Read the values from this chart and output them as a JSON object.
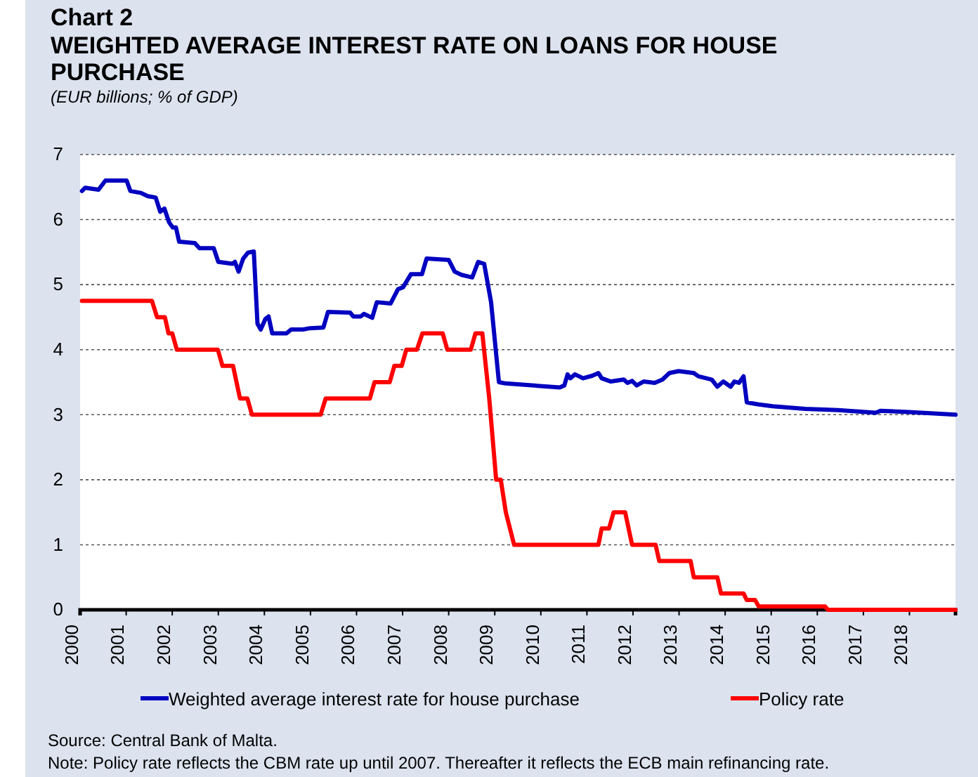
{
  "chart_data": {
    "type": "line",
    "title": "Chart 2",
    "subtitle": "WEIGHTED AVERAGE INTEREST RATE ON LOANS FOR HOUSE PURCHASE",
    "ylabel": "(EUR billions; % of GDP)",
    "annotations": [
      "Source: Central Bank of Malta.",
      "Note: Policy rate reflects the CBM rate up until 2007. Thereafter it reflects the ECB main refinancing rate."
    ],
    "xlim": [
      2000,
      2019
    ],
    "xticks": [
      2000,
      2001,
      2002,
      2003,
      2004,
      2005,
      2006,
      2007,
      2008,
      2009,
      2010,
      2011,
      2012,
      2013,
      2014,
      2015,
      2016,
      2017,
      2018
    ],
    "ylim": [
      0,
      7
    ],
    "yticks": [
      0,
      1,
      2,
      3,
      4,
      5,
      6,
      7
    ],
    "grid": "y",
    "legend": "bottom",
    "line_style": "solid",
    "series": [
      {
        "name": "Weighted average interest rate for house purchase",
        "color": "#0000c0",
        "x": [
          2000.04,
          2000.11,
          2000.4,
          2000.55,
          2001.01,
          2001.09,
          2001.32,
          2001.47,
          2001.64,
          2001.74,
          2001.83,
          2001.93,
          2002.01,
          2002.08,
          2002.15,
          2002.49,
          2002.59,
          2002.9,
          2003.0,
          2003.31,
          2003.36,
          2003.44,
          2003.54,
          2003.64,
          2003.77,
          2003.85,
          2003.92,
          2004.02,
          2004.09,
          2004.17,
          2004.48,
          2004.58,
          2004.84,
          2004.99,
          2005.28,
          2005.38,
          2005.86,
          2005.93,
          2006.09,
          2006.16,
          2006.34,
          2006.44,
          2006.74,
          2006.9,
          2007.01,
          2007.18,
          2007.42,
          2007.52,
          2008.0,
          2008.13,
          2008.28,
          2008.51,
          2008.64,
          2008.77,
          2008.92,
          2009.09,
          2009.24,
          2010.41,
          2010.51,
          2010.58,
          2010.64,
          2010.74,
          2010.92,
          2011.12,
          2011.25,
          2011.32,
          2011.52,
          2011.8,
          2011.88,
          2011.98,
          2012.08,
          2012.23,
          2012.47,
          2012.64,
          2012.79,
          2012.99,
          2013.32,
          2013.42,
          2013.71,
          2013.83,
          2013.96,
          2014.12,
          2014.2,
          2014.3,
          2014.4,
          2014.47,
          2014.71,
          2015.03,
          2015.74,
          2016.45,
          2017.27,
          2017.37,
          2017.98,
          2018.53,
          2019.0
        ],
        "values": [
          6.44,
          6.49,
          6.46,
          6.6,
          6.6,
          6.44,
          6.41,
          6.36,
          6.34,
          6.12,
          6.17,
          5.96,
          5.88,
          5.88,
          5.66,
          5.64,
          5.56,
          5.56,
          5.35,
          5.32,
          5.35,
          5.2,
          5.4,
          5.49,
          5.51,
          4.4,
          4.31,
          4.47,
          4.51,
          4.25,
          4.25,
          4.31,
          4.31,
          4.33,
          4.34,
          4.58,
          4.57,
          4.51,
          4.51,
          4.55,
          4.49,
          4.73,
          4.71,
          4.93,
          4.96,
          5.16,
          5.16,
          5.4,
          5.38,
          5.2,
          5.15,
          5.11,
          5.35,
          5.32,
          4.73,
          3.5,
          3.48,
          3.42,
          3.45,
          3.62,
          3.56,
          3.62,
          3.56,
          3.6,
          3.64,
          3.56,
          3.51,
          3.54,
          3.49,
          3.52,
          3.45,
          3.51,
          3.49,
          3.54,
          3.64,
          3.67,
          3.64,
          3.59,
          3.54,
          3.43,
          3.51,
          3.43,
          3.51,
          3.49,
          3.59,
          3.19,
          3.16,
          3.13,
          3.09,
          3.07,
          3.03,
          3.06,
          3.04,
          3.02,
          3.0
        ]
      },
      {
        "name": "Policy rate",
        "color": "#ff0000",
        "x": [
          2000.04,
          2001.56,
          2001.67,
          2001.84,
          2001.92,
          2002.0,
          2002.1,
          2002.99,
          2003.09,
          2003.32,
          2003.47,
          2003.63,
          2003.73,
          2005.22,
          2005.33,
          2006.29,
          2006.39,
          2006.72,
          2006.82,
          2006.98,
          2007.08,
          2007.31,
          2007.43,
          2007.87,
          2007.97,
          2008.48,
          2008.58,
          2008.73,
          2008.88,
          2009.03,
          2009.13,
          2009.24,
          2009.42,
          2011.25,
          2011.32,
          2011.48,
          2011.58,
          2011.83,
          2011.98,
          2012.49,
          2012.57,
          2013.25,
          2013.32,
          2013.83,
          2013.91,
          2014.4,
          2014.47,
          2014.65,
          2014.73,
          2016.17,
          2016.23,
          2019.0
        ],
        "values": [
          4.75,
          4.75,
          4.5,
          4.5,
          4.25,
          4.25,
          4.0,
          4.0,
          3.75,
          3.75,
          3.25,
          3.25,
          3.0,
          3.0,
          3.25,
          3.25,
          3.5,
          3.5,
          3.75,
          3.75,
          4.0,
          4.0,
          4.25,
          4.25,
          4.0,
          4.0,
          4.25,
          4.25,
          3.25,
          2.0,
          2.0,
          1.5,
          1.0,
          1.0,
          1.25,
          1.25,
          1.5,
          1.5,
          1.0,
          1.0,
          0.75,
          0.75,
          0.5,
          0.5,
          0.25,
          0.25,
          0.15,
          0.15,
          0.05,
          0.05,
          0.0,
          0.0
        ]
      }
    ]
  }
}
